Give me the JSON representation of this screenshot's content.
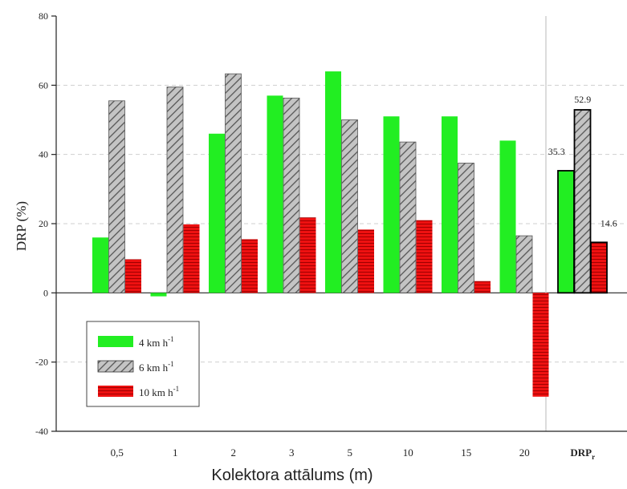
{
  "chart_data": {
    "type": "bar",
    "title": "",
    "xlabel": "Kolektora attālums (m)",
    "ylabel": "DRP (%)",
    "ylim": [
      -40,
      80
    ],
    "yticks": [
      -40,
      -20,
      0,
      20,
      40,
      60,
      80
    ],
    "grid": "horizontal dashed",
    "categories": [
      "0,5",
      "1",
      "2",
      "3",
      "5",
      "10",
      "15",
      "20",
      "DRP"
    ],
    "last_category_subscript": "r",
    "legend_position": "bottom-left",
    "series": [
      {
        "name": "4 km h",
        "superscript": "-1",
        "color": "#22ee22",
        "pattern": "solid",
        "values": [
          16,
          -1,
          46,
          57,
          64,
          51,
          51,
          44,
          35.3
        ]
      },
      {
        "name": "6 km h",
        "superscript": "-1",
        "color": "#b8b8b8",
        "pattern": "diagonal-hatch",
        "values": [
          55.5,
          59.5,
          63.3,
          56.3,
          50,
          43.6,
          37.5,
          16.5,
          52.9
        ]
      },
      {
        "name": "10 km h",
        "superscript": "-1",
        "color": "#ee1111",
        "pattern": "horizontal-lines",
        "values": [
          9.7,
          19.8,
          15.5,
          21.8,
          18.3,
          21,
          3.4,
          -30,
          14.6
        ]
      }
    ],
    "data_labels": [
      "35.3",
      "52.9",
      "14.6"
    ]
  }
}
